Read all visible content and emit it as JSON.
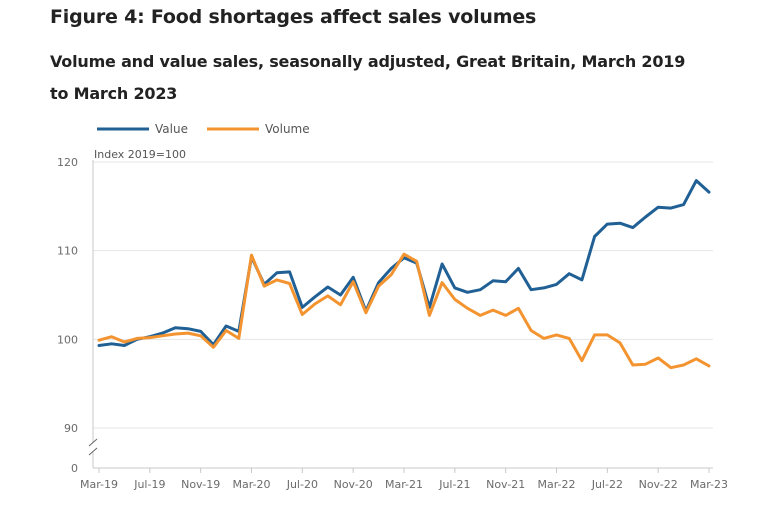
{
  "title": "Figure 4: Food shortages affect sales volumes",
  "subtitle": "Volume and value sales, seasonally adjusted, Great Britain, March 2019 to March 2023",
  "colors": {
    "value": "#206095",
    "volume": "#F39431",
    "grid": "#e6e6e6",
    "axis": "#c8c8c8"
  },
  "chart_data": {
    "type": "line",
    "unit_label": "Index 2019=100",
    "ylim": [
      90,
      120
    ],
    "y_ticks": [
      90,
      100,
      110,
      120
    ],
    "axis_break_label": "0",
    "x_tick_labels": [
      "Mar-19",
      "Jul-19",
      "Nov-19",
      "Mar-20",
      "Jul-20",
      "Nov-20",
      "Mar-21",
      "Jul-21",
      "Nov-21",
      "Mar-22",
      "Jul-22",
      "Nov-22",
      "Mar-23"
    ],
    "x_tick_every": 4,
    "x": [
      "Mar-19",
      "Apr-19",
      "May-19",
      "Jun-19",
      "Jul-19",
      "Aug-19",
      "Sep-19",
      "Oct-19",
      "Nov-19",
      "Dec-19",
      "Jan-20",
      "Feb-20",
      "Mar-20",
      "Apr-20",
      "May-20",
      "Jun-20",
      "Jul-20",
      "Aug-20",
      "Sep-20",
      "Oct-20",
      "Nov-20",
      "Dec-20",
      "Jan-21",
      "Feb-21",
      "Mar-21",
      "Apr-21",
      "May-21",
      "Jun-21",
      "Jul-21",
      "Aug-21",
      "Sep-21",
      "Oct-21",
      "Nov-21",
      "Dec-21",
      "Jan-22",
      "Feb-22",
      "Mar-22",
      "Apr-22",
      "May-22",
      "Jun-22",
      "Jul-22",
      "Aug-22",
      "Sep-22",
      "Oct-22",
      "Nov-22",
      "Dec-22",
      "Jan-23",
      "Feb-23",
      "Mar-23"
    ],
    "series": [
      {
        "name": "Value",
        "values": [
          99.3,
          99.5,
          99.3,
          100.0,
          100.3,
          100.7,
          101.3,
          101.2,
          100.9,
          99.4,
          101.5,
          100.9,
          109.3,
          106.2,
          107.5,
          107.6,
          103.6,
          104.8,
          105.9,
          105.0,
          107.0,
          103.2,
          106.4,
          108.0,
          109.2,
          108.6,
          103.6,
          108.5,
          105.8,
          105.3,
          105.6,
          106.6,
          106.5,
          108.0,
          105.6,
          105.8,
          106.2,
          107.4,
          106.7,
          111.6,
          113.0,
          113.1,
          112.6,
          113.8,
          114.9,
          114.8,
          115.2,
          117.9,
          116.6
        ]
      },
      {
        "name": "Volume",
        "values": [
          99.9,
          100.3,
          99.7,
          100.1,
          100.2,
          100.4,
          100.6,
          100.7,
          100.4,
          99.1,
          101.0,
          100.1,
          109.5,
          106.0,
          106.7,
          106.3,
          102.8,
          104.0,
          104.9,
          103.9,
          106.5,
          103.0,
          106.0,
          107.3,
          109.6,
          108.8,
          102.7,
          106.4,
          104.5,
          103.5,
          102.7,
          103.3,
          102.7,
          103.5,
          101.0,
          100.1,
          100.5,
          100.1,
          97.6,
          100.5,
          100.5,
          99.6,
          97.1,
          97.2,
          97.9,
          96.8,
          97.1,
          97.8,
          97.0
        ]
      }
    ]
  }
}
